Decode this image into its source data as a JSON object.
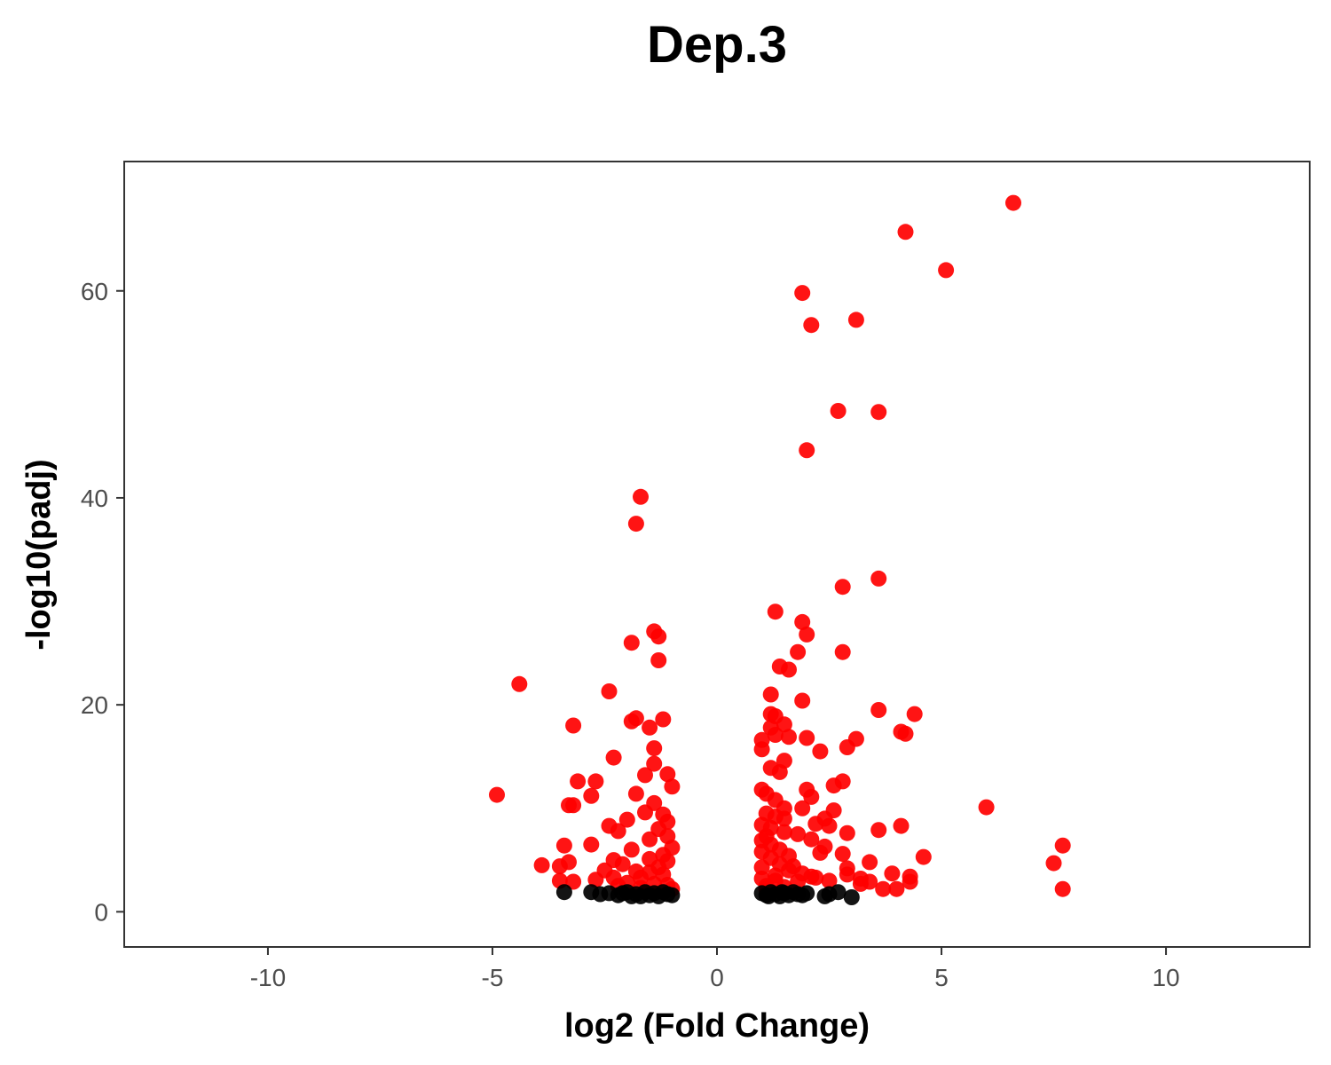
{
  "chart_data": {
    "type": "scatter",
    "title": "Dep.3",
    "xlabel": "log2 (Fold Change)",
    "ylabel": "-log10(padj)",
    "xlim": [
      -13.2,
      13.2
    ],
    "ylim": [
      -3.4,
      72.5
    ],
    "x_ticks": [
      -10,
      -5,
      0,
      5,
      10
    ],
    "x_tick_labels": [
      "-10",
      "-5",
      "0",
      "5",
      "10"
    ],
    "y_ticks": [
      0,
      20,
      40,
      60
    ],
    "y_tick_labels": [
      "0",
      "20",
      "40",
      "60"
    ],
    "grid": false,
    "legend": "none",
    "colors": {
      "significant": "#ff0000",
      "not_significant": "#000000"
    },
    "series": [
      {
        "color": "#ff0000",
        "points": [
          [
            6.6,
            68.5
          ],
          [
            4.2,
            65.7
          ],
          [
            5.1,
            62.0
          ],
          [
            1.9,
            59.8
          ],
          [
            3.1,
            57.2
          ],
          [
            2.1,
            56.7
          ],
          [
            2.7,
            48.4
          ],
          [
            3.6,
            48.3
          ],
          [
            2.0,
            44.6
          ],
          [
            -1.7,
            40.1
          ],
          [
            -1.8,
            37.5
          ],
          [
            3.6,
            32.2
          ],
          [
            2.8,
            31.4
          ],
          [
            1.3,
            29.0
          ],
          [
            1.9,
            28.0
          ],
          [
            2.0,
            26.8
          ],
          [
            -1.4,
            27.1
          ],
          [
            -1.3,
            26.6
          ],
          [
            -1.9,
            26.0
          ],
          [
            2.8,
            25.1
          ],
          [
            1.8,
            25.1
          ],
          [
            -1.3,
            24.3
          ],
          [
            1.4,
            23.7
          ],
          [
            1.6,
            23.4
          ],
          [
            -4.4,
            22.0
          ],
          [
            -2.4,
            21.3
          ],
          [
            1.2,
            21.0
          ],
          [
            1.9,
            20.4
          ],
          [
            3.6,
            19.5
          ],
          [
            4.4,
            19.1
          ],
          [
            1.2,
            19.1
          ],
          [
            1.3,
            18.9
          ],
          [
            -1.8,
            18.7
          ],
          [
            -1.2,
            18.6
          ],
          [
            -1.9,
            18.4
          ],
          [
            -3.2,
            18.0
          ],
          [
            1.5,
            18.1
          ],
          [
            1.2,
            17.8
          ],
          [
            -1.5,
            17.8
          ],
          [
            4.1,
            17.4
          ],
          [
            4.2,
            17.2
          ],
          [
            1.3,
            17.1
          ],
          [
            1.6,
            16.9
          ],
          [
            1.0,
            16.6
          ],
          [
            2.0,
            16.8
          ],
          [
            3.1,
            16.7
          ],
          [
            2.9,
            15.9
          ],
          [
            1.0,
            15.7
          ],
          [
            2.3,
            15.5
          ],
          [
            -1.4,
            15.8
          ],
          [
            -2.3,
            14.9
          ],
          [
            1.5,
            14.6
          ],
          [
            -1.4,
            14.3
          ],
          [
            1.2,
            13.9
          ],
          [
            1.4,
            13.5
          ],
          [
            -1.6,
            13.2
          ],
          [
            -1.1,
            13.3
          ],
          [
            -3.1,
            12.6
          ],
          [
            -2.7,
            12.6
          ],
          [
            2.8,
            12.6
          ],
          [
            2.6,
            12.2
          ],
          [
            -1.0,
            12.1
          ],
          [
            1.0,
            11.8
          ],
          [
            2.0,
            11.8
          ],
          [
            1.1,
            11.4
          ],
          [
            -1.8,
            11.4
          ],
          [
            -4.9,
            11.3
          ],
          [
            -2.8,
            11.2
          ],
          [
            2.1,
            11.1
          ],
          [
            1.3,
            10.8
          ],
          [
            -3.3,
            10.3
          ],
          [
            -3.2,
            10.3
          ],
          [
            -1.4,
            10.5
          ],
          [
            6.0,
            10.1
          ],
          [
            1.5,
            10.0
          ],
          [
            1.9,
            10.0
          ],
          [
            2.6,
            9.8
          ],
          [
            -1.6,
            9.6
          ],
          [
            1.1,
            9.5
          ],
          [
            -1.2,
            9.4
          ],
          [
            1.5,
            9.0
          ],
          [
            2.4,
            9.0
          ],
          [
            -2.0,
            8.9
          ],
          [
            -1.1,
            8.7
          ],
          [
            2.2,
            8.5
          ],
          [
            1.0,
            8.4
          ],
          [
            2.5,
            8.3
          ],
          [
            4.1,
            8.3
          ],
          [
            -2.4,
            8.3
          ],
          [
            1.2,
            8.1
          ],
          [
            3.6,
            7.9
          ],
          [
            -1.3,
            8.0
          ],
          [
            -2.2,
            7.8
          ],
          [
            2.9,
            7.6
          ],
          [
            1.8,
            7.5
          ],
          [
            -1.1,
            7.3
          ],
          [
            2.1,
            7.0
          ],
          [
            -1.5,
            7.0
          ],
          [
            1.0,
            6.9
          ],
          [
            -2.8,
            6.5
          ],
          [
            -3.4,
            6.4
          ],
          [
            7.7,
            6.4
          ],
          [
            2.4,
            6.3
          ],
          [
            1.4,
            6.0
          ],
          [
            -1.9,
            6.0
          ],
          [
            2.3,
            5.7
          ],
          [
            2.8,
            5.6
          ],
          [
            -1.2,
            5.5
          ],
          [
            4.6,
            5.3
          ],
          [
            1.2,
            5.2
          ],
          [
            -2.3,
            5.0
          ],
          [
            -1.1,
            4.9
          ],
          [
            3.4,
            4.8
          ],
          [
            -3.3,
            4.8
          ],
          [
            7.5,
            4.7
          ],
          [
            -3.9,
            4.5
          ],
          [
            -3.5,
            4.4
          ],
          [
            1.0,
            4.3
          ],
          [
            2.9,
            4.2
          ],
          [
            1.6,
            4.0
          ],
          [
            -2.5,
            4.0
          ],
          [
            -1.5,
            3.8
          ],
          [
            3.9,
            3.7
          ],
          [
            2.9,
            3.6
          ],
          [
            1.3,
            3.5
          ],
          [
            2.1,
            3.4
          ],
          [
            4.3,
            3.4
          ],
          [
            -2.3,
            3.3
          ],
          [
            -1.7,
            3.3
          ],
          [
            3.2,
            3.2
          ],
          [
            -2.7,
            3.1
          ],
          [
            -3.5,
            3.0
          ],
          [
            2.5,
            3.0
          ],
          [
            -3.2,
            2.9
          ],
          [
            1.8,
            2.9
          ],
          [
            3.4,
            2.9
          ],
          [
            4.3,
            2.9
          ],
          [
            3.2,
            2.7
          ],
          [
            -1.1,
            2.6
          ],
          [
            1.1,
            2.5
          ],
          [
            3.7,
            2.2
          ],
          [
            4.0,
            2.2
          ],
          [
            7.7,
            2.2
          ],
          [
            -2.0,
            2.8
          ],
          [
            -1.3,
            4.3
          ],
          [
            -1.0,
            6.2
          ],
          [
            -1.5,
            5.1
          ],
          [
            -2.1,
            4.6
          ],
          [
            -1.8,
            3.9
          ],
          [
            -1.2,
            3.6
          ],
          [
            -1.4,
            2.7
          ],
          [
            -2.2,
            2.5
          ],
          [
            -1.7,
            2.3
          ],
          [
            -1.0,
            2.2
          ],
          [
            1.1,
            2.2
          ],
          [
            1.5,
            2.4
          ],
          [
            1.3,
            3.0
          ],
          [
            1.0,
            3.2
          ],
          [
            1.2,
            6.5
          ],
          [
            1.6,
            5.4
          ],
          [
            1.4,
            4.6
          ],
          [
            1.0,
            5.8
          ],
          [
            1.1,
            7.3
          ],
          [
            1.7,
            4.4
          ],
          [
            1.9,
            3.7
          ],
          [
            2.2,
            3.3
          ],
          [
            1.5,
            7.7
          ],
          [
            1.3,
            9.2
          ]
        ]
      },
      {
        "color": "#000000",
        "points": [
          [
            -3.4,
            1.9
          ],
          [
            -2.6,
            1.7
          ],
          [
            -2.4,
            1.8
          ],
          [
            -2.2,
            1.6
          ],
          [
            -2.0,
            1.9
          ],
          [
            -1.9,
            1.5
          ],
          [
            -1.8,
            1.7
          ],
          [
            -1.6,
            1.9
          ],
          [
            -1.5,
            1.6
          ],
          [
            -1.4,
            1.8
          ],
          [
            -1.3,
            1.5
          ],
          [
            -1.2,
            1.9
          ],
          [
            -1.1,
            1.7
          ],
          [
            -1.0,
            1.6
          ],
          [
            -2.8,
            1.9
          ],
          [
            -2.1,
            1.8
          ],
          [
            -1.7,
            1.5
          ],
          [
            1.0,
            1.8
          ],
          [
            1.1,
            1.6
          ],
          [
            1.2,
            1.9
          ],
          [
            1.3,
            1.7
          ],
          [
            1.4,
            1.5
          ],
          [
            1.5,
            1.8
          ],
          [
            1.6,
            1.6
          ],
          [
            1.7,
            1.9
          ],
          [
            1.8,
            1.7
          ],
          [
            1.9,
            1.6
          ],
          [
            2.0,
            1.8
          ],
          [
            2.4,
            1.5
          ],
          [
            2.5,
            1.7
          ],
          [
            2.7,
            1.9
          ],
          [
            3.0,
            1.4
          ],
          [
            1.15,
            1.5
          ],
          [
            1.45,
            1.9
          ]
        ]
      }
    ]
  }
}
